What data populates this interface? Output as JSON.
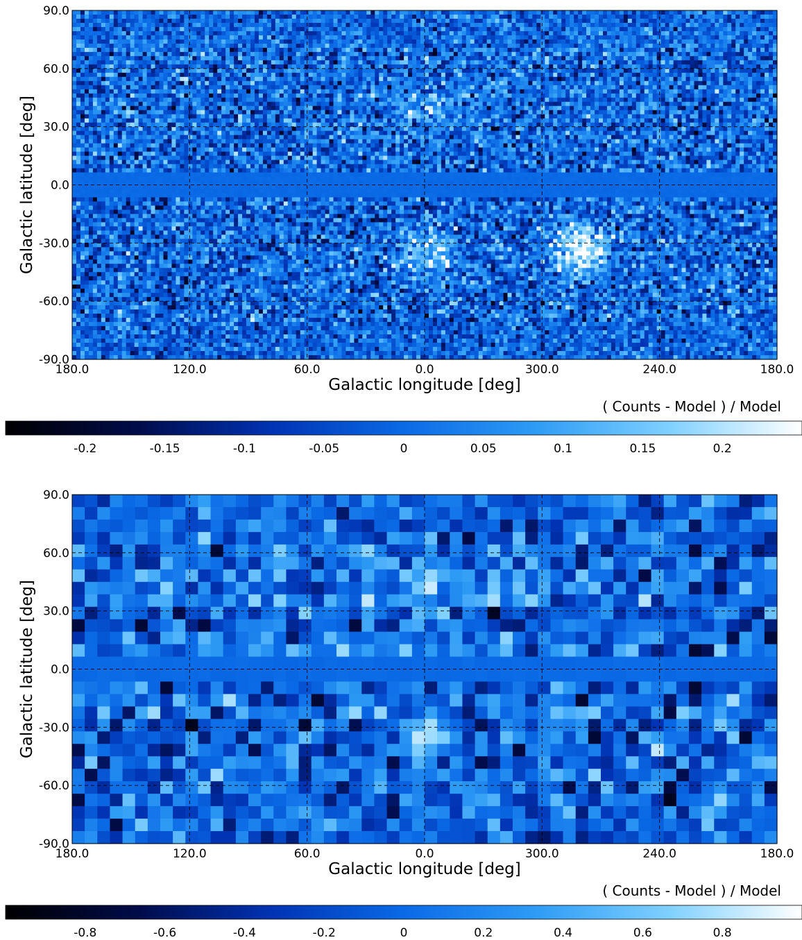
{
  "chart_data": [
    {
      "type": "heatmap",
      "projection": "plate-carree",
      "xlabel": "Galactic longitude [deg]",
      "ylabel": "Galactic latitude [deg]",
      "x_ticks": [
        "180.0",
        "120.0",
        "60.0",
        "0.0",
        "300.0",
        "240.0",
        "180.0"
      ],
      "y_ticks": [
        "90.0",
        "60.0",
        "30.0",
        "0.0",
        "-30.0",
        "-60.0",
        "-90.0"
      ],
      "xlim": [
        180,
        -180
      ],
      "ylim": [
        -90,
        90
      ],
      "grid": true,
      "pixelization": "fine",
      "colorbar": {
        "label": "( Counts - Model ) / Model",
        "ticks": [
          "-0.2",
          "-0.15",
          "-0.1",
          "-0.05",
          "0",
          "0.05",
          "0.1",
          "0.15",
          "0.2"
        ],
        "range": [
          -0.25,
          0.25
        ],
        "colormap": [
          "#000000",
          "#000c4a",
          "#0033b3",
          "#0a6ae6",
          "#2e9cf5",
          "#7fd0ff",
          "#ffffff"
        ]
      },
      "features": [
        {
          "label": "masked Galactic plane",
          "lat_range": [
            -7,
            7
          ],
          "value": 0.0
        },
        {
          "label": "excess bubble",
          "lon_center": 0,
          "lat_center": -35,
          "value": 0.15
        },
        {
          "label": "excess north",
          "lon_center": 0,
          "lat_center": 40,
          "value": 0.08
        },
        {
          "label": "compact excess",
          "lon_center": -80,
          "lat_center": -33,
          "value": 0.25
        }
      ]
    },
    {
      "type": "heatmap",
      "projection": "plate-carree",
      "xlabel": "Galactic longitude [deg]",
      "ylabel": "Galactic latitude [deg]",
      "x_ticks": [
        "180.0",
        "120.0",
        "60.0",
        "0.0",
        "300.0",
        "240.0",
        "180.0"
      ],
      "y_ticks": [
        "90.0",
        "60.0",
        "30.0",
        "0.0",
        "-30.0",
        "-60.0",
        "-90.0"
      ],
      "xlim": [
        180,
        -180
      ],
      "ylim": [
        -90,
        90
      ],
      "grid": true,
      "pixelization": "coarse",
      "colorbar": {
        "label": "( Counts - Model ) / Model",
        "ticks": [
          "-0.8",
          "-0.6",
          "-0.4",
          "-0.2",
          "0",
          "0.2",
          "0.4",
          "0.6",
          "0.8"
        ],
        "range": [
          -1.0,
          1.0
        ],
        "colormap": [
          "#000000",
          "#000c4a",
          "#0033b3",
          "#0a6ae6",
          "#2e9cf5",
          "#7fd0ff",
          "#ffffff"
        ]
      },
      "features": [
        {
          "label": "masked Galactic plane",
          "lat_range": [
            -7,
            7
          ],
          "value": 0.0
        },
        {
          "label": "excess bubble",
          "lon_center": 0,
          "lat_center": -35,
          "value": 0.7
        },
        {
          "label": "excess north",
          "lon_center": -8,
          "lat_center": 42,
          "value": 0.6
        }
      ]
    }
  ]
}
